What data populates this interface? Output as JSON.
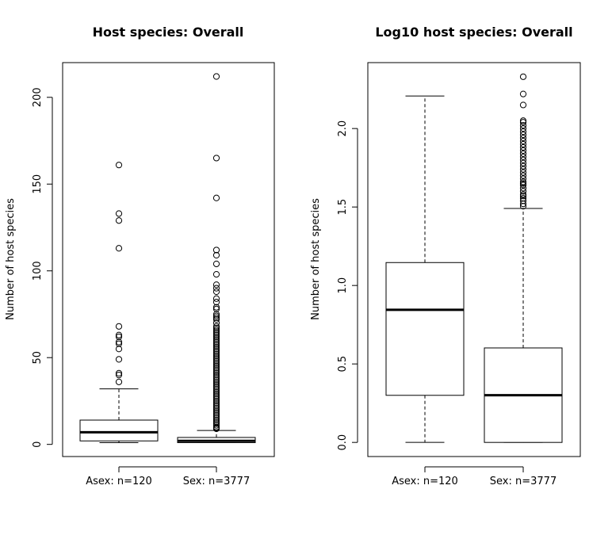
{
  "chart_data": [
    {
      "type": "box",
      "title": "Host species: Overall",
      "xlabel": "",
      "ylabel": "Number of host species",
      "ylim": [
        -7,
        220
      ],
      "yticks": [
        0,
        50,
        100,
        150,
        200
      ],
      "ytick_labels": [
        "0",
        "50",
        "100",
        "150",
        "200"
      ],
      "grid": false,
      "legend": "none",
      "categories": [
        "Asex: n=120",
        "Sex: n=3777"
      ],
      "boxes": [
        {
          "name": "Asex: n=120",
          "whisker_low": 1,
          "q1": 2,
          "median": 7,
          "q3": 14,
          "whisker_high": 32,
          "outliers": [
            36,
            40,
            41,
            49,
            55,
            58,
            59,
            62,
            63,
            68,
            113,
            129,
            133,
            161
          ]
        },
        {
          "name": "Sex: n=3777",
          "whisker_low": 1,
          "q1": 1,
          "median": 2,
          "q3": 4,
          "whisker_high": 8,
          "outliers": [
            9,
            9.5,
            10,
            11,
            12,
            13,
            14,
            15,
            16,
            17,
            18,
            19,
            20,
            21,
            22,
            23,
            24,
            25,
            26,
            27,
            28,
            29,
            30,
            31,
            32,
            33,
            34,
            35,
            36,
            37,
            38,
            39,
            40,
            41,
            42,
            43,
            44,
            45,
            46,
            47,
            48,
            49,
            50,
            51,
            52,
            53,
            54,
            55,
            56,
            57,
            58,
            59,
            60,
            61,
            62,
            63,
            64,
            65,
            66,
            67,
            68,
            70,
            72,
            73,
            74,
            75,
            78,
            79,
            82,
            84,
            88,
            90,
            92,
            98,
            104,
            109,
            112,
            142,
            165,
            212
          ]
        }
      ]
    },
    {
      "type": "box",
      "title": "Log10 host species: Overall",
      "xlabel": "",
      "ylabel": "Number of host species",
      "ylim": [
        -0.09,
        2.42
      ],
      "yticks": [
        0,
        0.5,
        1,
        1.5,
        2
      ],
      "ytick_labels": [
        "0.0",
        "0.5",
        "1.0",
        "1.5",
        "2.0"
      ],
      "grid": false,
      "legend": "none",
      "categories": [
        "Asex: n=120",
        "Sex: n=3777"
      ],
      "boxes": [
        {
          "name": "Asex: n=120",
          "whisker_low": 0,
          "q1": 0.3,
          "median": 0.845,
          "q3": 1.146,
          "whisker_high": 2.207,
          "outliers": []
        },
        {
          "name": "Sex: n=3777",
          "whisker_low": 0,
          "q1": 0,
          "median": 0.301,
          "q3": 0.602,
          "whisker_high": 1.491,
          "outliers": [
            1.505,
            1.52,
            1.54,
            1.556,
            1.57,
            1.58,
            1.6,
            1.62,
            1.64,
            1.65,
            1.66,
            1.68,
            1.7,
            1.72,
            1.74,
            1.76,
            1.78,
            1.8,
            1.82,
            1.84,
            1.86,
            1.88,
            1.9,
            1.92,
            1.94,
            1.96,
            1.98,
            2.0,
            2.02,
            2.04,
            2.05,
            2.15,
            2.22,
            2.33
          ]
        }
      ]
    }
  ]
}
